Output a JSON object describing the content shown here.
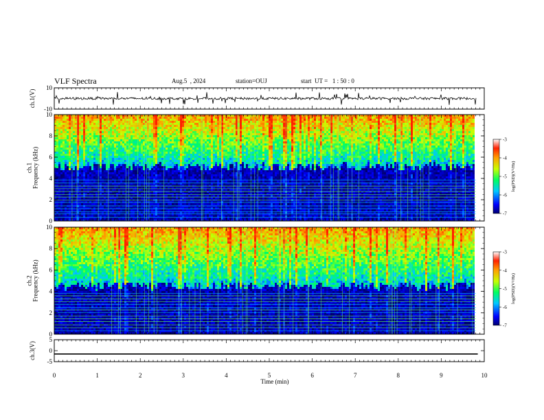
{
  "header": {
    "title": "VLF Spectra",
    "date": "Aug.5  , 2024",
    "station": "station=OUJ",
    "start": "start  UT =   1 : 50 : 0"
  },
  "chart_data": [
    {
      "type": "line",
      "ylabel": "ch.1(V)",
      "xlim": [
        0,
        10
      ],
      "ylim": [
        -10,
        10
      ],
      "yticks": [
        10,
        -10
      ]
    },
    {
      "type": "heatmap",
      "ylabel": "ch.1\nFrequency (kHz)",
      "xlim": [
        0,
        10
      ],
      "ylim": [
        0,
        10
      ],
      "yticks": [
        0,
        2,
        4,
        6,
        8,
        10
      ],
      "colorbar": {
        "label": "log(PSD)(V²/Hz)",
        "ticks": [
          -3,
          -4,
          -5,
          -6,
          -7
        ],
        "range": [
          -7,
          -3
        ]
      }
    },
    {
      "type": "heatmap",
      "ylabel": "ch.2\nFrequency (kHz)",
      "xlim": [
        0,
        10
      ],
      "ylim": [
        0,
        10
      ],
      "yticks": [
        0,
        2,
        4,
        6,
        8,
        10
      ],
      "colorbar": {
        "label": "log(PSD)(V²/Hz)",
        "ticks": [
          -3,
          -4,
          -5,
          -6,
          -7
        ],
        "range": [
          -7,
          -3
        ]
      }
    },
    {
      "type": "line",
      "ylabel": "ch.3(V)",
      "xlim": [
        0,
        10
      ],
      "ylim": [
        -5,
        5
      ],
      "yticks": [
        5,
        0,
        -5
      ],
      "series": [
        {
          "x": [
            0,
            9.85
          ],
          "y": [
            -1.5,
            -1.5
          ]
        }
      ]
    }
  ],
  "xaxis": {
    "label": "Time (min)",
    "ticks": [
      "0",
      "1",
      "2",
      "3",
      "4",
      "5",
      "6",
      "7",
      "8",
      "9",
      "10"
    ]
  },
  "colors": {
    "colormap": [
      "#000070",
      "#0000ff",
      "#00c8ff",
      "#00ff60",
      "#c8ff00",
      "#ffa000",
      "#ff2000",
      "#ffffff"
    ]
  }
}
